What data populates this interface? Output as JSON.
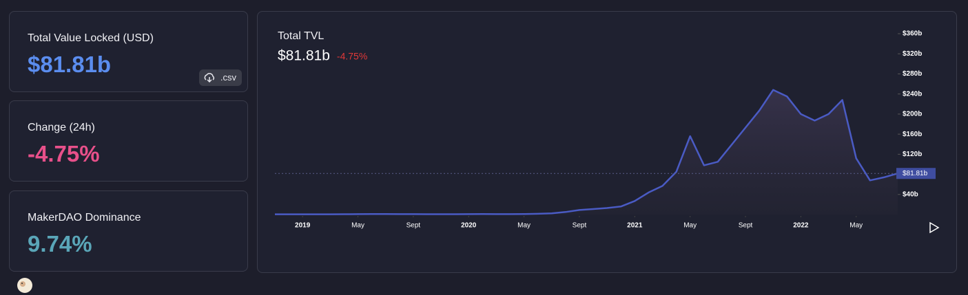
{
  "cards": [
    {
      "label": "Total Value Locked (USD)",
      "value": "$81.81b"
    },
    {
      "label": "Change (24h)",
      "value": "-4.75%"
    },
    {
      "label": "MakerDAO Dominance",
      "value": "9.74%"
    }
  ],
  "csv_button": ".csv",
  "chart_data": {
    "type": "area",
    "title": "Total TVL",
    "current": {
      "value": 81.81,
      "label": "$81.81b"
    },
    "change": "-4.75%",
    "color": "#4a5bc4",
    "x": [
      "2018-11",
      "2018-12",
      "2019-01",
      "2019-02",
      "2019-03",
      "2019-04",
      "2019-05",
      "2019-06",
      "2019-07",
      "2019-08",
      "2019-09",
      "2019-10",
      "2019-11",
      "2019-12",
      "2020-01",
      "2020-02",
      "2020-03",
      "2020-04",
      "2020-05",
      "2020-06",
      "2020-07",
      "2020-08",
      "2020-09",
      "2020-10",
      "2020-11",
      "2020-12",
      "2021-01",
      "2021-02",
      "2021-03",
      "2021-04",
      "2021-05",
      "2021-06",
      "2021-07",
      "2021-08",
      "2021-09",
      "2021-10",
      "2021-11",
      "2021-12",
      "2022-01",
      "2022-02",
      "2022-03",
      "2022-04",
      "2022-05",
      "2022-06",
      "2022-07",
      "2022-08"
    ],
    "values": [
      0.5,
      0.5,
      0.5,
      0.6,
      0.6,
      0.7,
      0.8,
      0.9,
      0.9,
      0.8,
      0.8,
      0.7,
      0.7,
      0.7,
      0.8,
      0.9,
      0.8,
      0.8,
      1,
      1.5,
      2.5,
      5,
      9,
      11,
      13,
      16,
      27,
      44,
      57,
      85,
      156,
      98,
      105,
      139,
      173,
      207,
      248,
      235,
      200,
      187,
      200,
      228,
      112,
      68,
      74,
      81.81
    ],
    "ylim": [
      0,
      360
    ],
    "yticks": [
      {
        "value": 40,
        "label": "$40b"
      },
      {
        "value": 120,
        "label": "$120b"
      },
      {
        "value": 160,
        "label": "$160b"
      },
      {
        "value": 200,
        "label": "$200b"
      },
      {
        "value": 240,
        "label": "$240b"
      },
      {
        "value": 280,
        "label": "$280b"
      },
      {
        "value": 320,
        "label": "$320b"
      },
      {
        "value": 360,
        "label": "$360b"
      }
    ],
    "xticks": [
      {
        "value": "2019-01",
        "label": "2019"
      },
      {
        "value": "2019-05",
        "label": "May"
      },
      {
        "value": "2019-09",
        "label": "Sept"
      },
      {
        "value": "2020-01",
        "label": "2020"
      },
      {
        "value": "2020-05",
        "label": "May"
      },
      {
        "value": "2020-09",
        "label": "Sept"
      },
      {
        "value": "2021-01",
        "label": "2021"
      },
      {
        "value": "2021-05",
        "label": "May"
      },
      {
        "value": "2021-09",
        "label": "Sept"
      },
      {
        "value": "2022-01",
        "label": "2022"
      },
      {
        "value": "2022-05",
        "label": "May"
      }
    ]
  }
}
